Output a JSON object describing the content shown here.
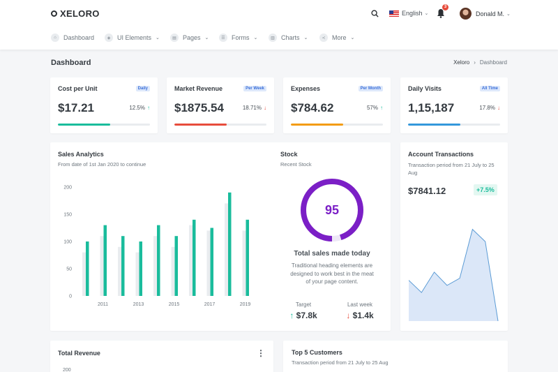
{
  "brand": {
    "name": "XELORO"
  },
  "header": {
    "language": "English",
    "notifications_count": "3",
    "user_name": "Donald M."
  },
  "nav": {
    "items": [
      {
        "label": "Dashboard",
        "icon": "home-icon"
      },
      {
        "label": "UI Elements",
        "icon": "ui-elements-icon",
        "has_caret": true
      },
      {
        "label": "Pages",
        "icon": "pages-icon",
        "has_caret": true
      },
      {
        "label": "Forms",
        "icon": "forms-icon",
        "has_caret": true
      },
      {
        "label": "Charts",
        "icon": "charts-icon",
        "has_caret": true
      },
      {
        "label": "More",
        "icon": "share-icon",
        "has_caret": true
      }
    ]
  },
  "page": {
    "title": "Dashboard",
    "breadcrumb": [
      "Xeloro",
      "Dashboard"
    ]
  },
  "stats": [
    {
      "title": "Cost per Unit",
      "period": "Daily",
      "value": "$17.21",
      "change": "12.5%",
      "direction": "up",
      "progress": 0.57,
      "color": "#1abc9c"
    },
    {
      "title": "Market Revenue",
      "period": "Per Week",
      "value": "$1875.54",
      "change": "18.71%",
      "direction": "down",
      "progress": 0.57,
      "color": "#e74c3c"
    },
    {
      "title": "Expenses",
      "period": "Per Month",
      "value": "$784.62",
      "change": "57%",
      "direction": "up",
      "progress": 0.57,
      "color": "#f39c12"
    },
    {
      "title": "Daily Visits",
      "period": "All Time",
      "value": "1,15,187",
      "change": "17.8%",
      "direction": "down",
      "progress": 0.57,
      "color": "#3498db"
    }
  ],
  "sales_analytics": {
    "title": "Sales Analytics",
    "subtitle": "From date of 1st Jan 2020 to continue"
  },
  "stock": {
    "title": "Stock",
    "subtitle": "Recent Stock",
    "gauge_value": "95",
    "gauge_percent": 95,
    "heading": "Total sales made today",
    "description": "Traditional heading elements are designed to work best in the meat of your page content.",
    "target_label": "Target",
    "target_value": "$7.8k",
    "last_week_label": "Last week",
    "last_week_value": "$1.4k"
  },
  "account": {
    "title": "Account Transactions",
    "subtitle": "Transaction period from 21 July to 25 Aug",
    "value": "$7841.12",
    "change": "+7.5%"
  },
  "total_revenue": {
    "title": "Total Revenue",
    "first_tick": "200"
  },
  "top_customers": {
    "title": "Top 5 Customers",
    "subtitle": "Transaction period from 21 July to 25 Aug"
  },
  "chart_data": [
    {
      "type": "bar",
      "x_ticks": [
        "2011",
        "2013",
        "2015",
        "2017",
        "2019"
      ],
      "y_ticks": [
        "0",
        "50",
        "100",
        "150",
        "200"
      ],
      "ylim": [
        0,
        200
      ],
      "series": [
        {
          "values": [
            80,
            110,
            90,
            80,
            110,
            90,
            130,
            120,
            170,
            120
          ],
          "color": "#e9ecef"
        },
        {
          "values": [
            100,
            130,
            110,
            100,
            130,
            110,
            140,
            125,
            190,
            140
          ],
          "color": "#1abc9c"
        }
      ]
    },
    {
      "type": "area",
      "values": [
        40,
        28,
        48,
        35,
        42,
        90,
        78,
        0
      ],
      "ylim": [
        0,
        100
      ],
      "color": "#a9c7ef"
    }
  ]
}
